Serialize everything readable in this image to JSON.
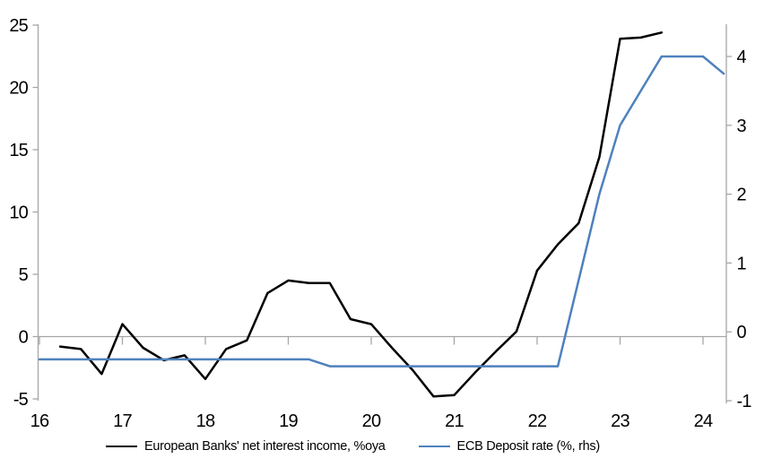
{
  "legend": {
    "series1_label": "European Banks' net interest income, %oya",
    "series2_label": "ECB Deposit rate (%, rhs)"
  },
  "colors": {
    "series1": "#000000",
    "series2": "#4E81BD",
    "axis": "#A6A6A6",
    "text": "#000000",
    "background": "#FFFFFF"
  },
  "chart_data": {
    "type": "line",
    "title": "",
    "xlabel": "",
    "ylabel_left": "",
    "ylabel_right": "",
    "grid": "zero-line-only",
    "legend_position": "bottom",
    "x_ticks": [
      16,
      17,
      18,
      19,
      20,
      21,
      22,
      23,
      24
    ],
    "x_range": [
      16,
      24.3
    ],
    "left_axis": {
      "ticks": [
        25,
        20,
        15,
        10,
        5,
        0,
        -5
      ],
      "range": [
        -5.2,
        25.1
      ]
    },
    "right_axis": {
      "ticks": [
        4,
        3,
        2,
        1,
        0,
        -1
      ],
      "range": [
        -1,
        4.5
      ]
    },
    "series": [
      {
        "name": "European Banks' net interest income, %oya",
        "axis": "left",
        "color": "#000000",
        "x": [
          16.25,
          16.5,
          16.75,
          17.0,
          17.25,
          17.5,
          17.75,
          18.0,
          18.25,
          18.5,
          18.75,
          19.0,
          19.25,
          19.5,
          19.75,
          20.0,
          20.25,
          20.5,
          20.75,
          21.0,
          21.25,
          21.5,
          21.75,
          22.0,
          22.25,
          22.5,
          22.75,
          23.0,
          23.25,
          23.5
        ],
        "values": [
          -0.8,
          -1.0,
          -3.0,
          1.0,
          -0.9,
          -1.9,
          -1.5,
          -3.4,
          -1.0,
          -0.3,
          3.5,
          4.5,
          4.3,
          4.3,
          1.4,
          1.0,
          -0.9,
          -2.7,
          -4.8,
          -4.7,
          -2.9,
          -1.2,
          0.4,
          5.3,
          7.4,
          9.1,
          14.4,
          23.9,
          24.0,
          24.4
        ]
      },
      {
        "name": "ECB Deposit rate (%, rhs)",
        "axis": "right",
        "color": "#4E81BD",
        "x": [
          16.0,
          16.25,
          16.5,
          16.75,
          17.0,
          17.25,
          17.5,
          17.75,
          18.0,
          18.25,
          18.5,
          18.75,
          19.0,
          19.25,
          19.5,
          19.75,
          20.0,
          20.25,
          20.5,
          20.75,
          21.0,
          21.25,
          21.5,
          21.75,
          22.0,
          22.25,
          22.5,
          22.75,
          23.0,
          23.25,
          23.5,
          23.75,
          24.0,
          24.25
        ],
        "values": [
          -0.4,
          -0.4,
          -0.4,
          -0.4,
          -0.4,
          -0.4,
          -0.4,
          -0.4,
          -0.4,
          -0.4,
          -0.4,
          -0.4,
          -0.4,
          -0.4,
          -0.5,
          -0.5,
          -0.5,
          -0.5,
          -0.5,
          -0.5,
          -0.5,
          -0.5,
          -0.5,
          -0.5,
          -0.5,
          -0.5,
          0.75,
          2.0,
          3.0,
          3.5,
          4.0,
          4.0,
          4.0,
          3.75
        ]
      }
    ]
  }
}
